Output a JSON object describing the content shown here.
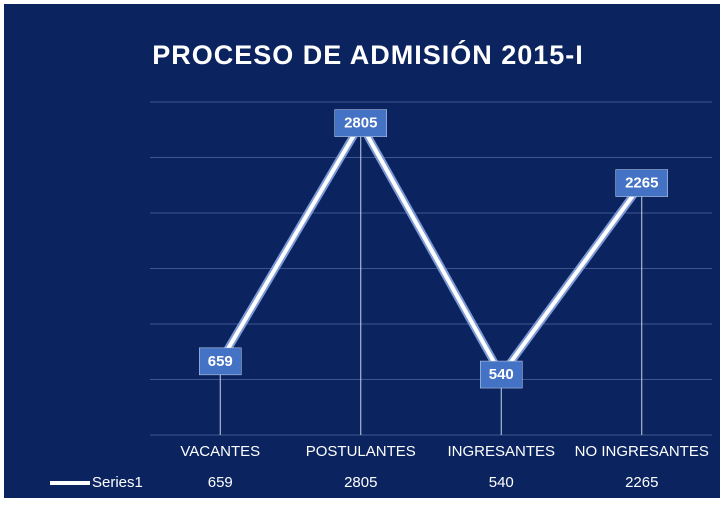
{
  "chart_data": {
    "type": "line",
    "title": "PROCESO DE ADMISIÓN 2015-I",
    "categories": [
      "VACANTES",
      "POSTULANTES",
      "INGRESANTES",
      "NO INGRESANTES"
    ],
    "series": [
      {
        "name": "Series1",
        "color": "#ffffff",
        "values": [
          659,
          2805,
          540,
          2265
        ]
      }
    ],
    "ylim": [
      0,
      3000
    ],
    "yticks": [
      0,
      500,
      1000,
      1500,
      2000,
      2500,
      3000
    ],
    "grid": true,
    "label_color": "#4472c4",
    "background": "#0b2460"
  }
}
